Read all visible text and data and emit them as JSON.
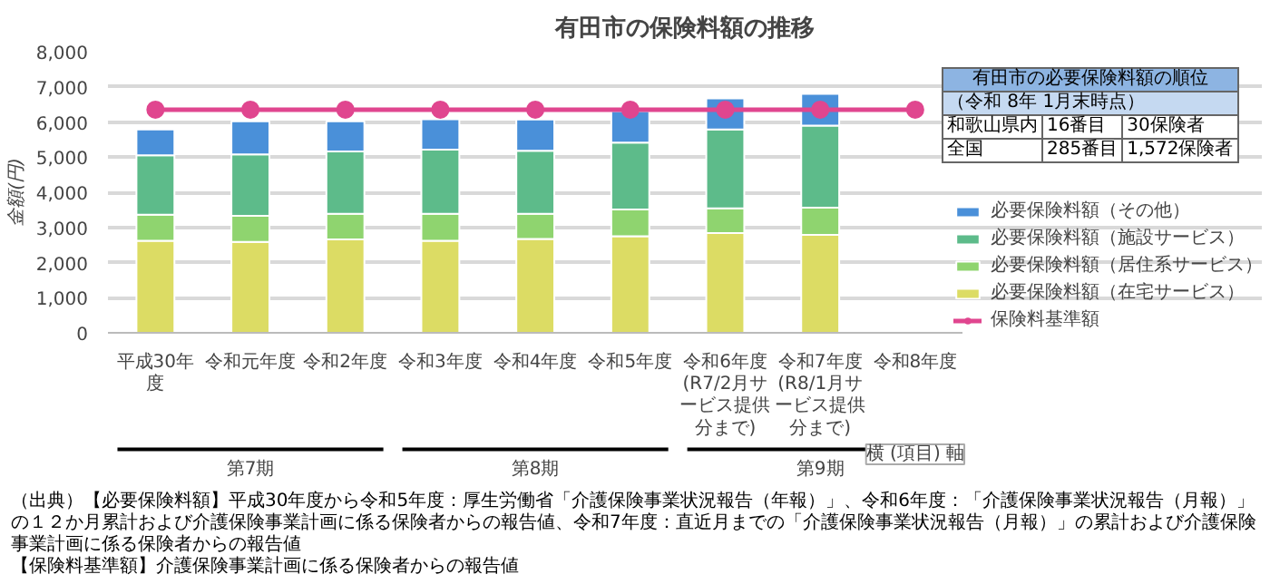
{
  "chart_data": [
    {
      "type": "bar",
      "stacked": true,
      "title": "有田市の保険料額の推移",
      "ylabel": "金額(円)",
      "categories": [
        "平成30年度",
        "令和元年度",
        "令和2年度",
        "令和3年度",
        "令和4年度",
        "令和5年度",
        "令和6年度(R7/2月サービス提供分まで)",
        "令和7年度(R8/1月サービス提供分まで)",
        "令和8年度"
      ],
      "series": [
        {
          "name": "必要保険料額（在宅サービス）",
          "color": "#dcdc64",
          "values": [
            2620,
            2590,
            2660,
            2620,
            2670,
            2750,
            2840,
            2790,
            null
          ]
        },
        {
          "name": "必要保険料額（居住系サービス）",
          "color": "#8fd46f",
          "values": [
            740,
            740,
            730,
            770,
            720,
            760,
            700,
            770,
            null
          ]
        },
        {
          "name": "必要保険料額（施設サービス）",
          "color": "#5dbb8a",
          "values": [
            1690,
            1750,
            1770,
            1820,
            1790,
            1900,
            2250,
            2340,
            null
          ]
        },
        {
          "name": "必要保険料額（その他）",
          "color": "#4a90d9",
          "values": [
            740,
            940,
            860,
            870,
            890,
            900,
            880,
            900,
            null
          ]
        },
        {
          "name": "保険料基準額",
          "type": "line",
          "color": "#e0468f",
          "values": [
            6350,
            6350,
            6350,
            6350,
            6350,
            6350,
            6350,
            6350,
            6350
          ]
        }
      ],
      "ylim": [
        0,
        8000
      ],
      "yticks": [
        0,
        {
          "value": 1000,
          "label": "1,000"
        },
        {
          "value": 2000,
          "label": "2,000"
        },
        {
          "value": 3000,
          "label": "3,000"
        },
        {
          "value": 4000,
          "label": "4,000"
        },
        {
          "value": 5000,
          "label": "5,000"
        },
        {
          "value": 6000,
          "label": "6,000"
        },
        {
          "value": 7000,
          "label": "7,000"
        },
        {
          "value": 8000,
          "label": "8,000"
        }
      ],
      "grid": "y",
      "legend": "right",
      "marker": "circle",
      "annotations": [
        "第7期",
        "第8期",
        "第9期",
        "横 (項目) 軸",
        "（出典）【必要保険料額】平成30年度から令和5年度：厚生労働省「介護保険事業状況報告（年報）」、令和6年度：「介護保険事業状況報告（月報）」の１２か月累計および介護保険事業計画に係る保険者からの報告値、令和7年度：直近月までの「介護保険事業状況報告（月報）」の累計および介護保険事業計画に係る保険者からの報告値",
        "【保険料基準額】介護保険事業計画に係る保険者からの報告値"
      ]
    },
    {
      "type": "other",
      "title": "有田市の必要保険料額の順位",
      "subtitle": "（令和 8年 1月末時点）",
      "annotations": [
        "和歌山県内",
        "16番目",
        "30保険者",
        "全国",
        "285番目",
        "1,572保険者"
      ]
    }
  ]
}
